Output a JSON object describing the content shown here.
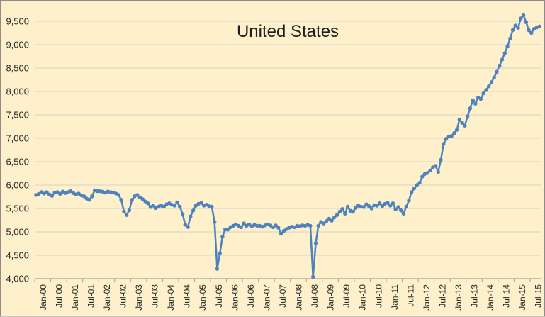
{
  "chart_data": {
    "type": "line",
    "title": "United States",
    "xlabel": "",
    "ylabel": "",
    "x_start": "Jan-00",
    "x_end": "Oct-15",
    "x_interval": "monthly",
    "x_tick_labels": [
      "Jan-00",
      "Jul-00",
      "Jan-01",
      "Jul-01",
      "Jan-02",
      "Jul-02",
      "Jan-03",
      "Jul-03",
      "Jan-04",
      "Jul-04",
      "Jan-05",
      "Jul-05",
      "Jan-06",
      "Jul-06",
      "Jan-07",
      "Jul-07",
      "Jan-08",
      "Jul-08",
      "Jan-09",
      "Jul-09",
      "Jan-10",
      "Jul-10",
      "Jan-11",
      "Jul-11",
      "Jan-12",
      "Jul-12",
      "Jan-13",
      "Jul-13",
      "Jan-14",
      "Jul-14",
      "Jan-15",
      "Jul-15"
    ],
    "y_tick_labels": [
      "4,000",
      "4,500",
      "5,000",
      "5,500",
      "6,000",
      "6,500",
      "7,000",
      "7,500",
      "8,000",
      "8,500",
      "9,000",
      "9,500"
    ],
    "ylim": [
      4000,
      9500
    ],
    "grid": "horizontal",
    "legend": "none",
    "colors": {
      "background": "#FDF0CB",
      "series": "#4F81BD",
      "gridline": "#D8D3C5",
      "axis": "#A59F92",
      "text": "#2B2B2B"
    },
    "series": [
      {
        "name": "United States",
        "values": [
          5790,
          5810,
          5850,
          5820,
          5850,
          5800,
          5770,
          5840,
          5850,
          5810,
          5860,
          5830,
          5850,
          5870,
          5830,
          5800,
          5820,
          5780,
          5760,
          5710,
          5685,
          5760,
          5885,
          5870,
          5870,
          5860,
          5840,
          5860,
          5850,
          5840,
          5820,
          5790,
          5685,
          5435,
          5360,
          5460,
          5685,
          5760,
          5790,
          5740,
          5700,
          5650,
          5610,
          5530,
          5560,
          5510,
          5540,
          5560,
          5540,
          5590,
          5610,
          5580,
          5560,
          5630,
          5540,
          5380,
          5155,
          5105,
          5330,
          5455,
          5560,
          5600,
          5620,
          5560,
          5580,
          5550,
          5540,
          5210,
          4210,
          4540,
          4900,
          5050,
          5050,
          5100,
          5130,
          5160,
          5130,
          5100,
          5180,
          5130,
          5160,
          5120,
          5150,
          5130,
          5130,
          5110,
          5140,
          5160,
          5140,
          5100,
          5140,
          5090,
          4960,
          5020,
          5060,
          5090,
          5110,
          5100,
          5130,
          5120,
          5140,
          5130,
          5150,
          5130,
          4040,
          4760,
          5130,
          5210,
          5180,
          5230,
          5280,
          5240,
          5310,
          5360,
          5430,
          5490,
          5390,
          5540,
          5450,
          5430,
          5510,
          5560,
          5540,
          5530,
          5590,
          5550,
          5500,
          5570,
          5560,
          5610,
          5550,
          5600,
          5620,
          5560,
          5610,
          5480,
          5530,
          5460,
          5390,
          5540,
          5670,
          5850,
          5930,
          6000,
          6050,
          6180,
          6240,
          6260,
          6310,
          6380,
          6410,
          6280,
          6540,
          6880,
          6990,
          7040,
          7050,
          7110,
          7180,
          7400,
          7330,
          7270,
          7470,
          7640,
          7810,
          7740,
          7870,
          7840,
          7960,
          8030,
          8110,
          8200,
          8300,
          8420,
          8550,
          8680,
          8820,
          8960,
          9130,
          9310,
          9410,
          9360,
          9560,
          9630,
          9480,
          9310,
          9250,
          9340,
          9370,
          9390
        ]
      }
    ]
  }
}
